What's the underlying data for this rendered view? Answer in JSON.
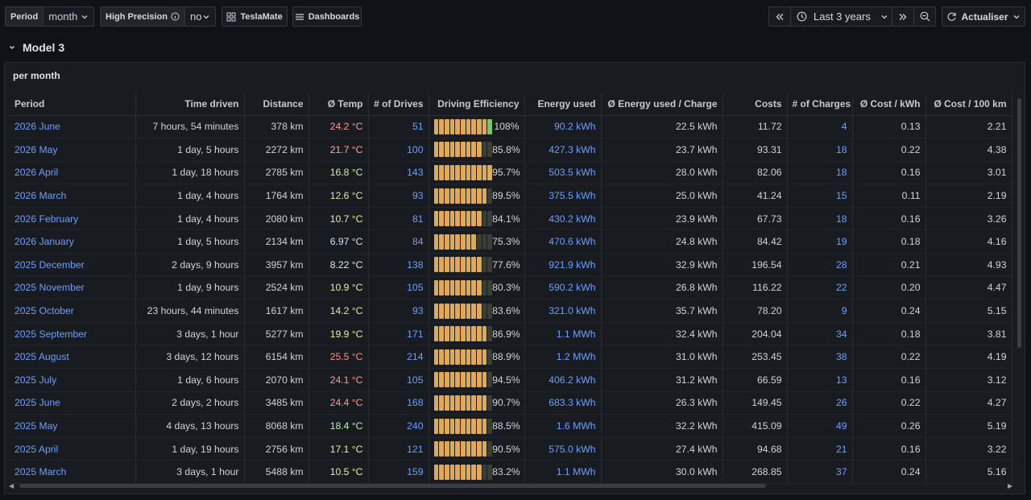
{
  "toolbar": {
    "period_label": "Period",
    "period_value": "month",
    "precision_label": "High Precision",
    "precision_value": "no",
    "teslamate_label": "TeslaMate",
    "dashboards_label": "Dashboards",
    "time_range": "Last 3 years",
    "refresh_label": "Actualiser"
  },
  "row": {
    "title": "Model 3"
  },
  "panel": {
    "title": "per month"
  },
  "table": {
    "headers": [
      "Period",
      "Time driven",
      "Distance",
      "Ø Temp",
      "# of Drives",
      "Driving Efficiency",
      "Energy used",
      "Ø Energy used / Charge",
      "Costs",
      "# of Charges",
      "Ø Cost / kWh",
      "Ø Cost / 100 km"
    ],
    "rows": [
      {
        "period": "2026 June",
        "time": "7 hours, 54 minutes",
        "distance": "378 km",
        "temp": "24.2 °C",
        "temp_color": "#ff9b8f",
        "drives": "51",
        "eff": "108%",
        "eff_frac": 1.08,
        "energy": "90.2 kWh",
        "avg_energy": "22.5 kWh",
        "costs": "11.72",
        "charges": "4",
        "cost_kwh": "0.13",
        "cost_100": "2.21"
      },
      {
        "period": "2026 May",
        "time": "1 day, 5 hours",
        "distance": "2272 km",
        "temp": "21.7 °C",
        "temp_color": "#ffa99b",
        "drives": "100",
        "eff": "85.8%",
        "eff_frac": 0.858,
        "energy": "427.3 kWh",
        "avg_energy": "23.7 kWh",
        "costs": "93.31",
        "charges": "18",
        "cost_kwh": "0.22",
        "cost_100": "4.38"
      },
      {
        "period": "2026 April",
        "time": "1 day, 18 hours",
        "distance": "2785 km",
        "temp": "16.8 °C",
        "temp_color": "#c8f0a0",
        "drives": "143",
        "eff": "95.7%",
        "eff_frac": 0.957,
        "energy": "503.5 kWh",
        "avg_energy": "28.0 kWh",
        "costs": "82.06",
        "charges": "18",
        "cost_kwh": "0.16",
        "cost_100": "3.01"
      },
      {
        "period": "2026 March",
        "time": "1 day, 4 hours",
        "distance": "1764 km",
        "temp": "12.6 °C",
        "temp_color": "#d8eda0",
        "drives": "93",
        "eff": "89.5%",
        "eff_frac": 0.895,
        "energy": "375.5 kWh",
        "avg_energy": "25.0 kWh",
        "costs": "41.24",
        "charges": "15",
        "cost_kwh": "0.11",
        "cost_100": "2.19"
      },
      {
        "period": "2026 February",
        "time": "1 day, 4 hours",
        "distance": "2080 km",
        "temp": "10.7 °C",
        "temp_color": "#e6f0a0",
        "drives": "81",
        "eff": "84.1%",
        "eff_frac": 0.841,
        "energy": "430.2 kWh",
        "avg_energy": "23.9 kWh",
        "costs": "67.73",
        "charges": "18",
        "cost_kwh": "0.16",
        "cost_100": "3.26"
      },
      {
        "period": "2026 January",
        "time": "1 day, 5 hours",
        "distance": "2134 km",
        "temp": "6.97 °C",
        "temp_color": "#cfe0f5",
        "drives": "84",
        "eff": "75.3%",
        "eff_frac": 0.753,
        "energy": "470.6 kWh",
        "avg_energy": "24.8 kWh",
        "costs": "84.42",
        "charges": "19",
        "cost_kwh": "0.18",
        "cost_100": "4.16"
      },
      {
        "period": "2025 December",
        "time": "2 days, 9 hours",
        "distance": "3957 km",
        "temp": "8.22 °C",
        "temp_color": "#dde8f2",
        "drives": "138",
        "eff": "77.6%",
        "eff_frac": 0.776,
        "energy": "921.9 kWh",
        "avg_energy": "32.9 kWh",
        "costs": "196.54",
        "charges": "28",
        "cost_kwh": "0.21",
        "cost_100": "4.93"
      },
      {
        "period": "2025 November",
        "time": "1 day, 9 hours",
        "distance": "2524 km",
        "temp": "10.9 °C",
        "temp_color": "#e6f0a0",
        "drives": "105",
        "eff": "80.3%",
        "eff_frac": 0.803,
        "energy": "590.2 kWh",
        "avg_energy": "26.8 kWh",
        "costs": "116.22",
        "charges": "22",
        "cost_kwh": "0.20",
        "cost_100": "4.47"
      },
      {
        "period": "2025 October",
        "time": "23 hours, 44 minutes",
        "distance": "1617 km",
        "temp": "14.2 °C",
        "temp_color": "#d4f0a0",
        "drives": "93",
        "eff": "83.6%",
        "eff_frac": 0.836,
        "energy": "321.0 kWh",
        "avg_energy": "35.7 kWh",
        "costs": "78.20",
        "charges": "9",
        "cost_kwh": "0.24",
        "cost_100": "5.15"
      },
      {
        "period": "2025 September",
        "time": "3 days, 1 hour",
        "distance": "5277 km",
        "temp": "19.9 °C",
        "temp_color": "#e8f0a0",
        "drives": "171",
        "eff": "86.9%",
        "eff_frac": 0.869,
        "energy": "1.1 MWh",
        "avg_energy": "32.4 kWh",
        "costs": "204.04",
        "charges": "34",
        "cost_kwh": "0.18",
        "cost_100": "3.81"
      },
      {
        "period": "2025 August",
        "time": "3 days, 12 hours",
        "distance": "6154 km",
        "temp": "25.5 °C",
        "temp_color": "#ff8e80",
        "drives": "214",
        "eff": "88.9%",
        "eff_frac": 0.889,
        "energy": "1.2 MWh",
        "avg_energy": "31.0 kWh",
        "costs": "253.45",
        "charges": "38",
        "cost_kwh": "0.22",
        "cost_100": "4.19"
      },
      {
        "period": "2025 July",
        "time": "1 day, 6 hours",
        "distance": "2070 km",
        "temp": "24.1 °C",
        "temp_color": "#ff9b8f",
        "drives": "105",
        "eff": "94.5%",
        "eff_frac": 0.945,
        "energy": "406.2 kWh",
        "avg_energy": "31.2 kWh",
        "costs": "66.59",
        "charges": "13",
        "cost_kwh": "0.16",
        "cost_100": "3.12"
      },
      {
        "period": "2025 June",
        "time": "2 days, 2 hours",
        "distance": "3485 km",
        "temp": "24.4 °C",
        "temp_color": "#ff9b8f",
        "drives": "168",
        "eff": "90.7%",
        "eff_frac": 0.907,
        "energy": "683.3 kWh",
        "avg_energy": "26.3 kWh",
        "costs": "149.45",
        "charges": "26",
        "cost_kwh": "0.22",
        "cost_100": "4.27"
      },
      {
        "period": "2025 May",
        "time": "4 days, 13 hours",
        "distance": "8068 km",
        "temp": "18.4 °C",
        "temp_color": "#c0f0b0",
        "drives": "240",
        "eff": "88.5%",
        "eff_frac": 0.885,
        "energy": "1.6 MWh",
        "avg_energy": "32.2 kWh",
        "costs": "415.09",
        "charges": "49",
        "cost_kwh": "0.26",
        "cost_100": "5.19"
      },
      {
        "period": "2025 April",
        "time": "1 day, 19 hours",
        "distance": "2756 km",
        "temp": "17.1 °C",
        "temp_color": "#e8f0a0",
        "drives": "121",
        "eff": "90.5%",
        "eff_frac": 0.905,
        "energy": "575.0 kWh",
        "avg_energy": "27.4 kWh",
        "costs": "94.68",
        "charges": "21",
        "cost_kwh": "0.16",
        "cost_100": "3.22"
      },
      {
        "period": "2025 March",
        "time": "3 days, 1 hour",
        "distance": "5488 km",
        "temp": "10.5 °C",
        "temp_color": "#e6f0a0",
        "drives": "159",
        "eff": "83.2%",
        "eff_frac": 0.832,
        "energy": "1.1 MWh",
        "avg_energy": "30.0 kWh",
        "costs": "268.85",
        "charges": "37",
        "cost_kwh": "0.24",
        "cost_100": "5.16"
      }
    ]
  },
  "colors": {
    "link": "#6e9fff",
    "bar_fill": "#e0a955",
    "bar_empty": "#3a3f33",
    "bar_over": "#7fc46b"
  }
}
